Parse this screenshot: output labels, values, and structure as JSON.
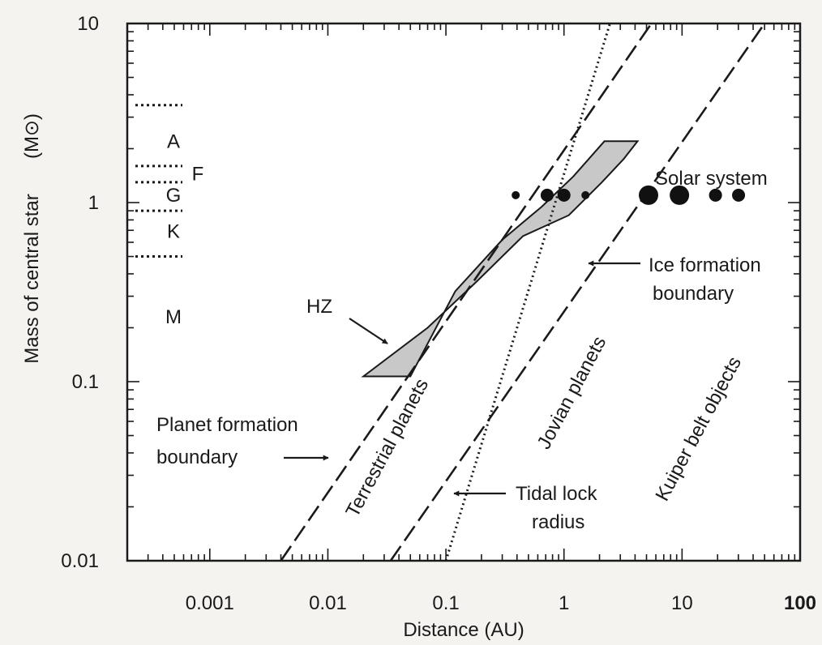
{
  "chart_data": {
    "type": "line",
    "xlabel": "Distance (AU)",
    "ylabel": "Mass of central star",
    "ylabel_unit": "(M⊙)",
    "x_scale": "log",
    "y_scale": "log",
    "xlim": [
      0.0002,
      100
    ],
    "ylim": [
      0.01,
      10
    ],
    "x_ticks": [
      {
        "v": 0.001,
        "label": "0.001"
      },
      {
        "v": 0.01,
        "label": "0.01"
      },
      {
        "v": 0.1,
        "label": "0.1"
      },
      {
        "v": 1,
        "label": "1"
      },
      {
        "v": 10,
        "label": "10"
      },
      {
        "v": 100,
        "label": "100"
      }
    ],
    "y_ticks": [
      {
        "v": 0.01,
        "label": "0.01"
      },
      {
        "v": 0.1,
        "label": "0.1"
      },
      {
        "v": 1,
        "label": "1"
      },
      {
        "v": 10,
        "label": "10"
      }
    ],
    "grid": false,
    "lines": [
      {
        "name": "planet_formation",
        "style": "dashed",
        "points": [
          [
            0.004,
            0.01
          ],
          [
            5.5,
            10
          ]
        ]
      },
      {
        "name": "terrestrial_jovian",
        "style": "dashed",
        "points": [
          [
            0.034,
            0.01
          ],
          [
            50,
            10
          ]
        ]
      },
      {
        "name": "tidal_lock",
        "style": "dotted",
        "points": [
          [
            0.1,
            0.01
          ],
          [
            2.45,
            10
          ]
        ]
      }
    ],
    "hz_polygon": [
      [
        0.02,
        0.107
      ],
      [
        0.05,
        0.107
      ],
      [
        0.12,
        0.32
      ],
      [
        0.3,
        0.62
      ],
      [
        0.65,
        0.95
      ],
      [
        1.2,
        1.4
      ],
      [
        2.2,
        2.2
      ],
      [
        4.2,
        2.2
      ],
      [
        3.2,
        1.75
      ],
      [
        2.1,
        1.3
      ],
      [
        1.1,
        0.85
      ],
      [
        0.45,
        0.65
      ],
      [
        0.18,
        0.36
      ],
      [
        0.07,
        0.2
      ]
    ],
    "spectral_classes": {
      "boundaries": [
        3.5,
        1.6,
        1.3,
        0.9,
        0.5
      ],
      "labels": [
        {
          "text": "A",
          "y": 2.2
        },
        {
          "text": "F",
          "y": 1.45
        },
        {
          "text": "G",
          "y": 1.1
        },
        {
          "text": "K",
          "y": 0.69
        },
        {
          "text": "M",
          "y": 0.23
        }
      ]
    },
    "solar_system": {
      "label": "Solar system",
      "planets": [
        {
          "a": 0.39,
          "m": 1.1,
          "size": "small"
        },
        {
          "a": 0.72,
          "m": 1.1,
          "size": "medium"
        },
        {
          "a": 1.0,
          "m": 1.1,
          "size": "medium"
        },
        {
          "a": 1.52,
          "m": 1.1,
          "size": "small"
        },
        {
          "a": 5.2,
          "m": 1.1,
          "size": "large"
        },
        {
          "a": 9.5,
          "m": 1.1,
          "size": "large"
        },
        {
          "a": 19.2,
          "m": 1.1,
          "size": "medium"
        },
        {
          "a": 30.1,
          "m": 1.1,
          "size": "medium"
        }
      ]
    },
    "annotations": {
      "hz": "HZ",
      "planet_formation": [
        "Planet formation",
        "boundary"
      ],
      "ice_formation": [
        "Ice formation",
        "boundary"
      ],
      "tidal_lock": [
        "Tidal lock",
        "radius"
      ],
      "terrestrial": "Terrestrial planets",
      "jovian": "Jovian planets",
      "kuiper": "Kuiper belt objects"
    }
  }
}
